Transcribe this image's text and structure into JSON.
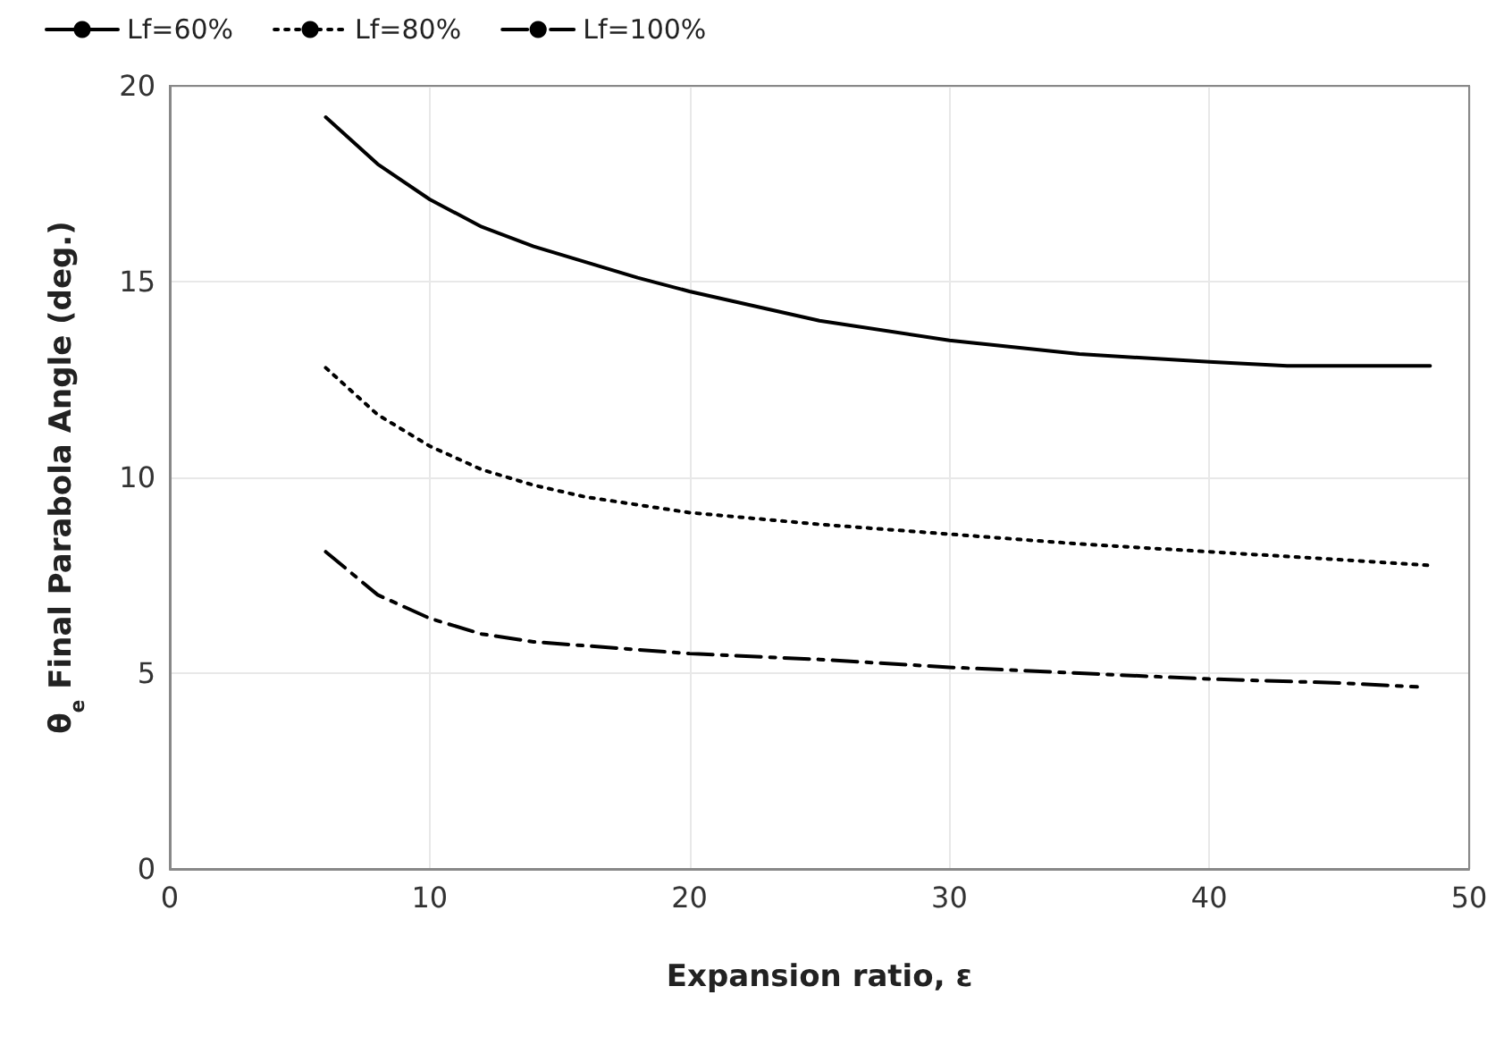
{
  "chart_data": {
    "type": "line",
    "xlabel": "Expansion ratio, ε",
    "ylabel": "θ$_{e}$ Final Parabola Angle (deg.)",
    "xlim": [
      0,
      50
    ],
    "xticks": [
      0,
      10,
      20,
      30,
      40,
      50
    ],
    "ylim": [
      0,
      20
    ],
    "yticks": [
      0,
      5,
      10,
      15,
      20
    ],
    "grid": true,
    "legend": "top left",
    "marker": "none",
    "series": [
      {
        "name": "Lf=60%",
        "color": "#000000",
        "line_style": "solid",
        "x": [
          6,
          8,
          10,
          12,
          14,
          16,
          18,
          20,
          25,
          30,
          35,
          40,
          43,
          48.5
        ],
        "values": [
          19.2,
          18.0,
          17.1,
          16.4,
          15.9,
          15.5,
          15.1,
          14.75,
          14.0,
          13.5,
          13.15,
          12.95,
          12.85,
          12.85
        ]
      },
      {
        "name": "Lf=80%",
        "color": "#000000",
        "line_style": "dotted",
        "x": [
          6,
          8,
          10,
          12,
          14,
          16,
          20,
          25,
          30,
          35,
          40,
          45,
          48.5
        ],
        "values": [
          12.8,
          11.6,
          10.8,
          10.2,
          9.8,
          9.5,
          9.1,
          8.8,
          8.55,
          8.3,
          8.1,
          7.9,
          7.75
        ]
      },
      {
        "name": "Lf=100%",
        "color": "#000000",
        "line_style": "dashed",
        "x": [
          6,
          8,
          10,
          12,
          14,
          18,
          20,
          25,
          30,
          35,
          40,
          45,
          48
        ],
        "values": [
          8.1,
          7.0,
          6.4,
          6.0,
          5.8,
          5.6,
          5.5,
          5.35,
          5.15,
          5.0,
          4.85,
          4.75,
          4.65
        ]
      }
    ]
  }
}
